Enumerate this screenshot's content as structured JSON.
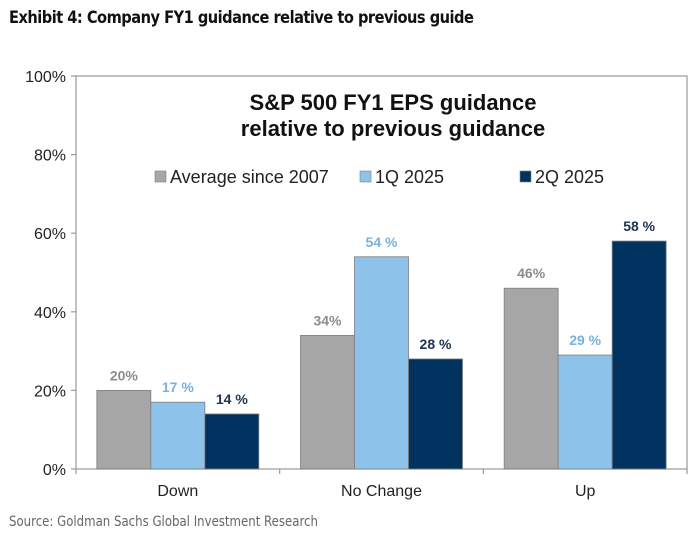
{
  "header": {
    "exhibit_title": "Exhibit 4: Company FY1 guidance relative to previous guide"
  },
  "footer": {
    "source": "Source: Goldman Sachs Global Investment Research"
  },
  "chart_data": {
    "type": "bar",
    "title_lines": [
      "S&P 500 FY1 EPS guidance",
      "relative to previous guidance"
    ],
    "categories": [
      "Down",
      "No Change",
      "Up"
    ],
    "series": [
      {
        "name": "Average since 2007",
        "color": "#a6a6a6",
        "label_color": "#8c8c8c",
        "values": [
          20,
          34,
          46
        ],
        "labels": [
          "20%",
          "34%",
          "46%"
        ]
      },
      {
        "name": "1Q 2025",
        "color": "#8dc3ea",
        "label_color": "#79b1db",
        "values": [
          17,
          54,
          29
        ],
        "labels": [
          "17 %",
          "54 %",
          "29 %"
        ]
      },
      {
        "name": "2Q 2025",
        "color": "#003360",
        "label_color": "#1c3450",
        "values": [
          14,
          28,
          58
        ],
        "labels": [
          "14 %",
          "28 %",
          "58 %"
        ]
      }
    ],
    "yticks": [
      "0%",
      "20%",
      "40%",
      "60%",
      "80%",
      "100%"
    ],
    "ytick_values": [
      0,
      20,
      40,
      60,
      80,
      100
    ],
    "ylim": [
      0,
      100
    ],
    "xlabel": "",
    "ylabel": "",
    "grid": false,
    "legend_position": "top-center"
  }
}
